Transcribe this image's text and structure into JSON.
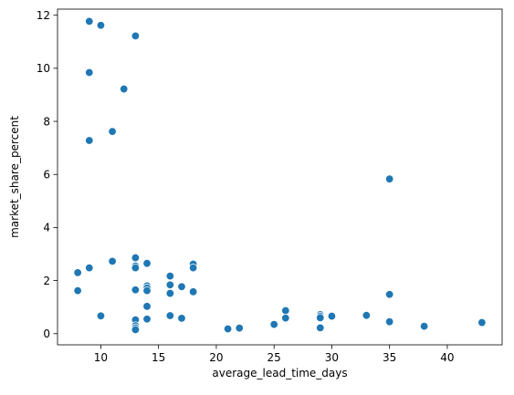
{
  "chart_data": {
    "type": "scatter",
    "title": "",
    "xlabel": "average_lead_time_days",
    "ylabel": "market_share_percent",
    "xlim": [
      6.25,
      44.75
    ],
    "ylim": [
      -0.42,
      12.23
    ],
    "xticks": [
      10,
      15,
      20,
      25,
      30,
      35,
      40
    ],
    "yticks": [
      0,
      2,
      4,
      6,
      8,
      10,
      12
    ],
    "grid": false,
    "legend": "none",
    "marker_color": "#1f77b4",
    "points": [
      {
        "x": 9,
        "y": 11.77
      },
      {
        "x": 10,
        "y": 11.62
      },
      {
        "x": 13,
        "y": 11.22
      },
      {
        "x": 9,
        "y": 9.84
      },
      {
        "x": 12,
        "y": 9.22
      },
      {
        "x": 11,
        "y": 7.62
      },
      {
        "x": 9,
        "y": 7.28
      },
      {
        "x": 35,
        "y": 5.83
      },
      {
        "x": 13,
        "y": 2.86
      },
      {
        "x": 11,
        "y": 2.73
      },
      {
        "x": 14,
        "y": 2.65
      },
      {
        "x": 18,
        "y": 2.62
      },
      {
        "x": 13,
        "y": 2.55
      },
      {
        "x": 13,
        "y": 2.48
      },
      {
        "x": 9,
        "y": 2.48
      },
      {
        "x": 18,
        "y": 2.48
      },
      {
        "x": 8,
        "y": 2.3
      },
      {
        "x": 16,
        "y": 2.17
      },
      {
        "x": 16,
        "y": 1.84
      },
      {
        "x": 14,
        "y": 1.8
      },
      {
        "x": 17,
        "y": 1.77
      },
      {
        "x": 14,
        "y": 1.72
      },
      {
        "x": 13,
        "y": 1.65
      },
      {
        "x": 8,
        "y": 1.62
      },
      {
        "x": 14,
        "y": 1.62
      },
      {
        "x": 18,
        "y": 1.58
      },
      {
        "x": 16,
        "y": 1.52
      },
      {
        "x": 35,
        "y": 1.48
      },
      {
        "x": 14,
        "y": 1.03
      },
      {
        "x": 26,
        "y": 0.87
      },
      {
        "x": 29,
        "y": 0.72
      },
      {
        "x": 33,
        "y": 0.69
      },
      {
        "x": 16,
        "y": 0.68
      },
      {
        "x": 10,
        "y": 0.67
      },
      {
        "x": 29,
        "y": 0.66
      },
      {
        "x": 30,
        "y": 0.66
      },
      {
        "x": 26,
        "y": 0.59
      },
      {
        "x": 29,
        "y": 0.6
      },
      {
        "x": 17,
        "y": 0.58
      },
      {
        "x": 14,
        "y": 0.55
      },
      {
        "x": 13,
        "y": 0.52
      },
      {
        "x": 35,
        "y": 0.45
      },
      {
        "x": 43,
        "y": 0.42
      },
      {
        "x": 25,
        "y": 0.35
      },
      {
        "x": 13,
        "y": 0.3
      },
      {
        "x": 38,
        "y": 0.28
      },
      {
        "x": 13,
        "y": 0.22
      },
      {
        "x": 29,
        "y": 0.22
      },
      {
        "x": 22,
        "y": 0.21
      },
      {
        "x": 21,
        "y": 0.18
      },
      {
        "x": 13,
        "y": 0.15
      }
    ]
  }
}
